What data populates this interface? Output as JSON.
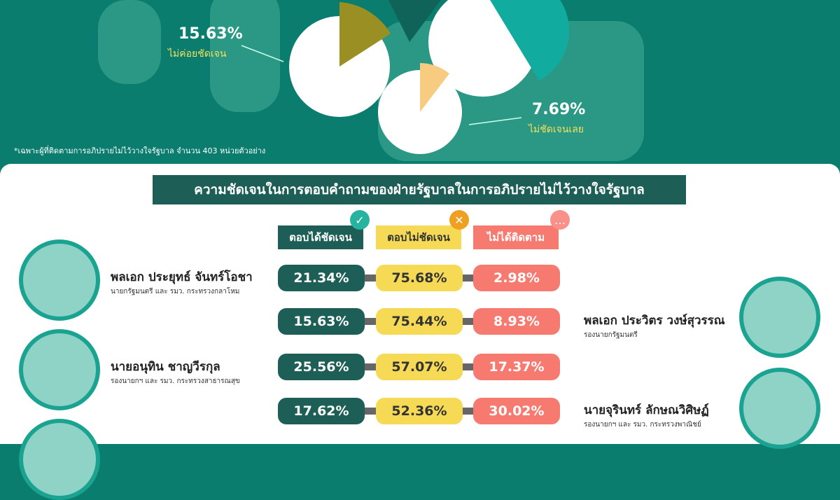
{
  "top_chart": {
    "slices": [
      {
        "value": "15.63%",
        "label": "ไม่ค่อยชัดเจน",
        "color": "#9a8f22"
      },
      {
        "value": "7.69%",
        "label": "ไม่ชัดเจนเลย",
        "color": "#f7cc80"
      }
    ],
    "colors": {
      "dark": "#0f6358",
      "teal": "#12aba0"
    },
    "footnote": "*เฉพาะผู้ที่ติดตามการอภิปรายไม่ไว้วางใจรัฐบาล จำนวน 403 หน่วยตัวอย่าง"
  },
  "table": {
    "title": "ความชัดเจนในการตอบคำถามของฝ่ายรัฐบาลในการอภิปรายไม่ไว้วางใจรัฐบาล",
    "columns": [
      {
        "label": "ตอบได้ชัดเจน",
        "icon": "check-icon",
        "color": "#1d5f56"
      },
      {
        "label": "ตอบไม่ชัดเจน",
        "icon": "x-icon",
        "color": "#f6da55"
      },
      {
        "label": "ไม่ได้ติดตาม",
        "icon": "ellipsis-icon",
        "color": "#f77a70"
      }
    ],
    "rows": [
      {
        "name": "พลเอก ประยุทธ์ จันทร์โอชา",
        "role": "นายกรัฐมนตรี และ รมว. กระทรวงกลาโหม",
        "values": [
          "21.34%",
          "75.68%",
          "2.98%"
        ]
      },
      {
        "name": "พลเอก ประวิตร วงษ์สุวรรณ",
        "role": "รองนายกรัฐมนตรี",
        "values": [
          "15.63%",
          "75.44%",
          "8.93%"
        ]
      },
      {
        "name": "นายอนุทิน ชาญวีรกุล",
        "role": "รองนายกฯ และ รมว. กระทรวงสาธารณสุข",
        "values": [
          "25.56%",
          "57.07%",
          "17.37%"
        ]
      },
      {
        "name": "นายจุรินทร์ ลักษณวิศิษฏ์",
        "role": "รองนายกฯ และ รมว. กระทรวงพาณิชย์",
        "values": [
          "17.62%",
          "52.36%",
          "30.02%"
        ]
      }
    ]
  }
}
